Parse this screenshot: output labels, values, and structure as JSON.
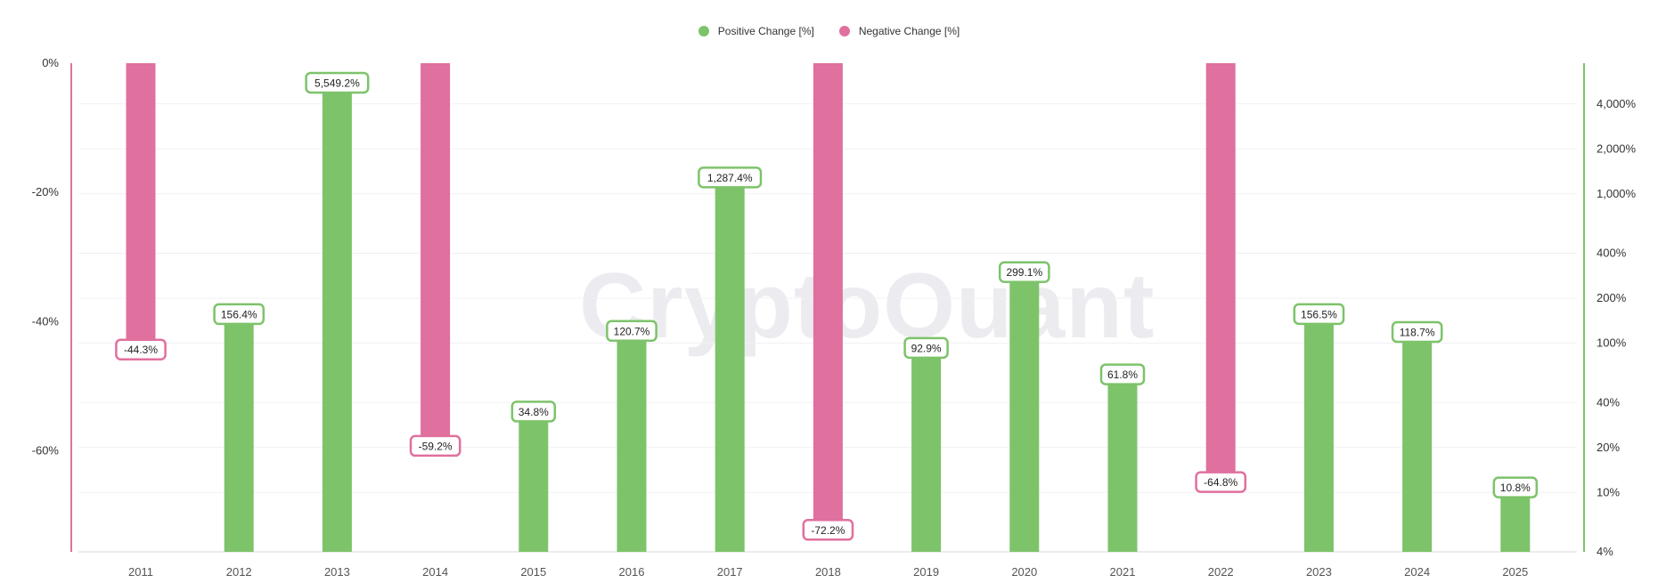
{
  "watermark": "CryptoQuant",
  "legend": [
    {
      "label": "Positive Change [%]",
      "color": "#7dc36a"
    },
    {
      "label": "Negative Change [%]",
      "color": "#e0709e"
    }
  ],
  "chart_data": {
    "type": "bar",
    "categories": [
      "2011",
      "2012",
      "2013",
      "2014",
      "2015",
      "2016",
      "2017",
      "2018",
      "2019",
      "2020",
      "2021",
      "2022",
      "2023",
      "2024",
      "2025"
    ],
    "series": [
      {
        "name": "Positive Change [%]",
        "axis": "right",
        "scale": "log",
        "color": "#7dc36a",
        "values": [
          null,
          156.4,
          5549.2,
          null,
          34.8,
          120.7,
          1287.4,
          null,
          92.9,
          299.1,
          61.8,
          null,
          156.5,
          118.7,
          10.8
        ],
        "labels": [
          null,
          "156.4%",
          "5,549.2%",
          null,
          "34.8%",
          "120.7%",
          "1,287.4%",
          null,
          "92.9%",
          "299.1%",
          "61.8%",
          null,
          "156.5%",
          "118.7%",
          "10.8%"
        ]
      },
      {
        "name": "Negative Change [%]",
        "axis": "left",
        "scale": "linear",
        "color": "#e0709e",
        "values": [
          -44.3,
          null,
          null,
          -59.2,
          null,
          null,
          null,
          -72.2,
          null,
          null,
          null,
          -64.8,
          null,
          null,
          null
        ],
        "labels": [
          "-44.3%",
          null,
          null,
          "-59.2%",
          null,
          null,
          null,
          "-72.2%",
          null,
          null,
          null,
          "-64.8%",
          null,
          null,
          null
        ]
      }
    ],
    "left_axis": {
      "ticks": [
        0,
        -20,
        -40,
        -60
      ],
      "tick_labels": [
        "0%",
        "-20%",
        "-40%",
        "-60%"
      ],
      "range": [
        -75.6,
        0
      ]
    },
    "right_axis": {
      "ticks": [
        4000,
        2000,
        1000,
        400,
        200,
        100,
        40,
        20,
        10,
        4
      ],
      "tick_labels": [
        "4,000%",
        "2,000%",
        "1,000%",
        "400%",
        "200%",
        "100%",
        "40%",
        "20%",
        "10%",
        "4%"
      ],
      "range": [
        4,
        7500
      ],
      "scale": "log"
    },
    "legend_position": "top-center",
    "grid": true
  }
}
